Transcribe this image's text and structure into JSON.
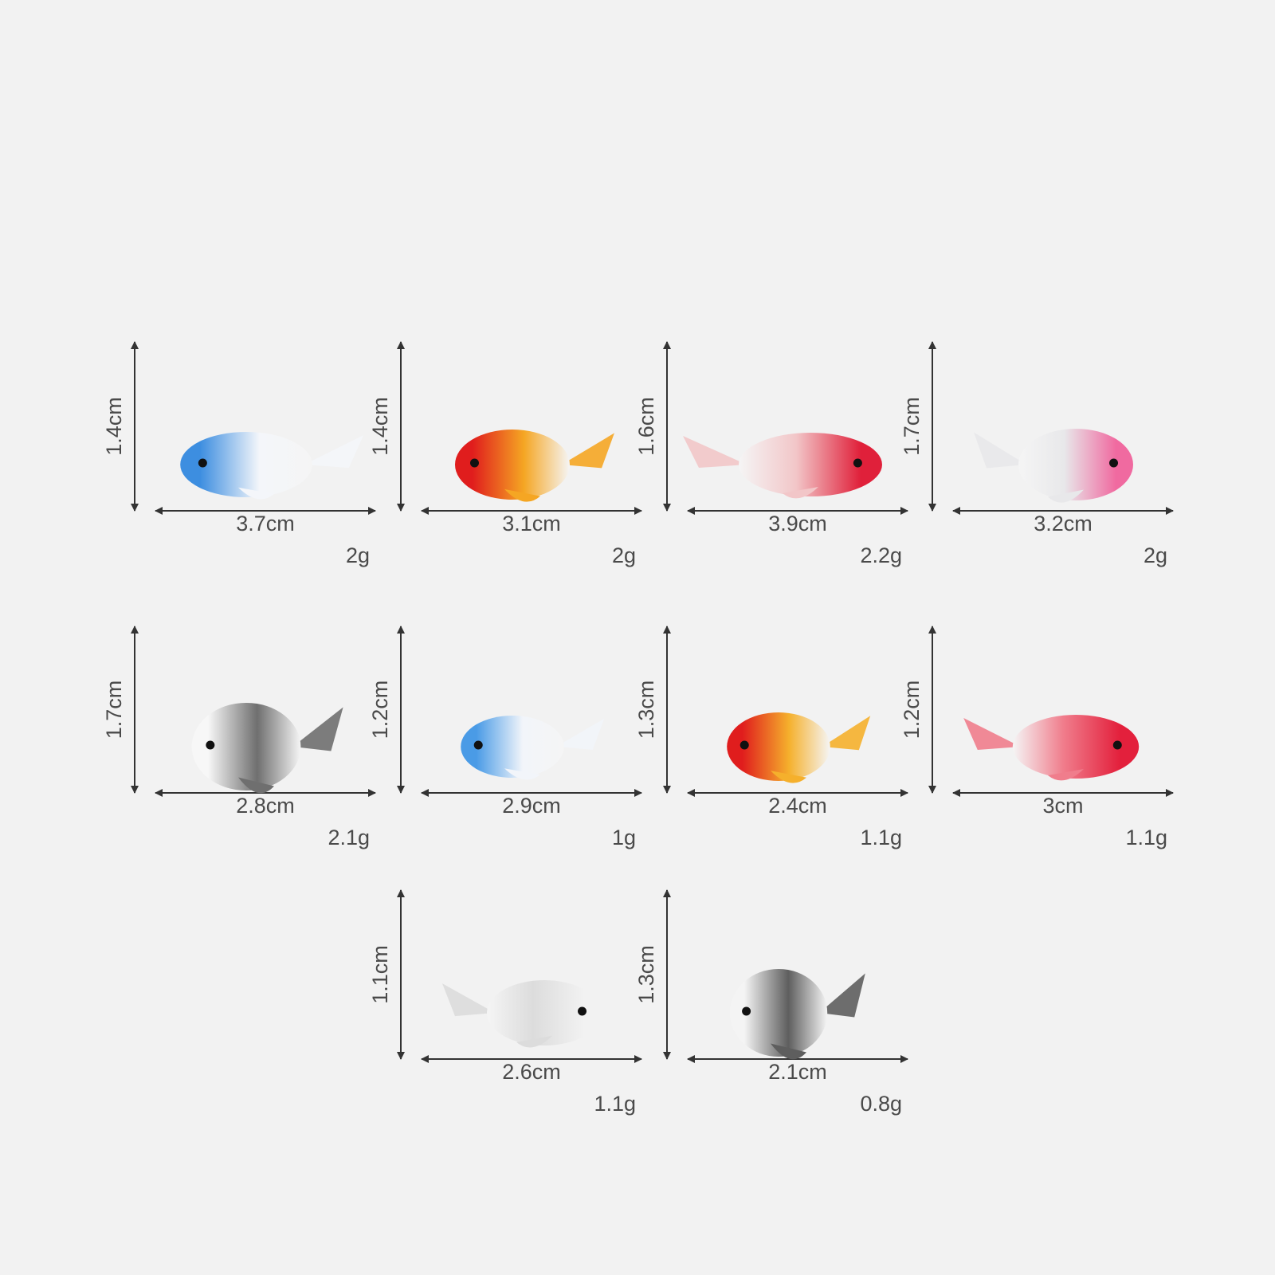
{
  "items": [
    {
      "height": "1.4cm",
      "width": "3.7cm",
      "weight": "2g"
    },
    {
      "height": "1.4cm",
      "width": "3.1cm",
      "weight": "2g"
    },
    {
      "height": "1.6cm",
      "width": "3.9cm",
      "weight": "2.2g"
    },
    {
      "height": "1.7cm",
      "width": "3.2cm",
      "weight": "2g"
    },
    {
      "height": "1.7cm",
      "width": "2.8cm",
      "weight": "2.1g"
    },
    {
      "height": "1.2cm",
      "width": "2.9cm",
      "weight": "1g"
    },
    {
      "height": "1.3cm",
      "width": "2.4cm",
      "weight": "1.1g"
    },
    {
      "height": "1.2cm",
      "width": "3cm",
      "weight": "1.1g"
    },
    {
      "height": "1.1cm",
      "width": "2.6cm",
      "weight": "1.1g"
    },
    {
      "height": "1.3cm",
      "width": "2.1cm",
      "weight": "0.8g"
    }
  ]
}
